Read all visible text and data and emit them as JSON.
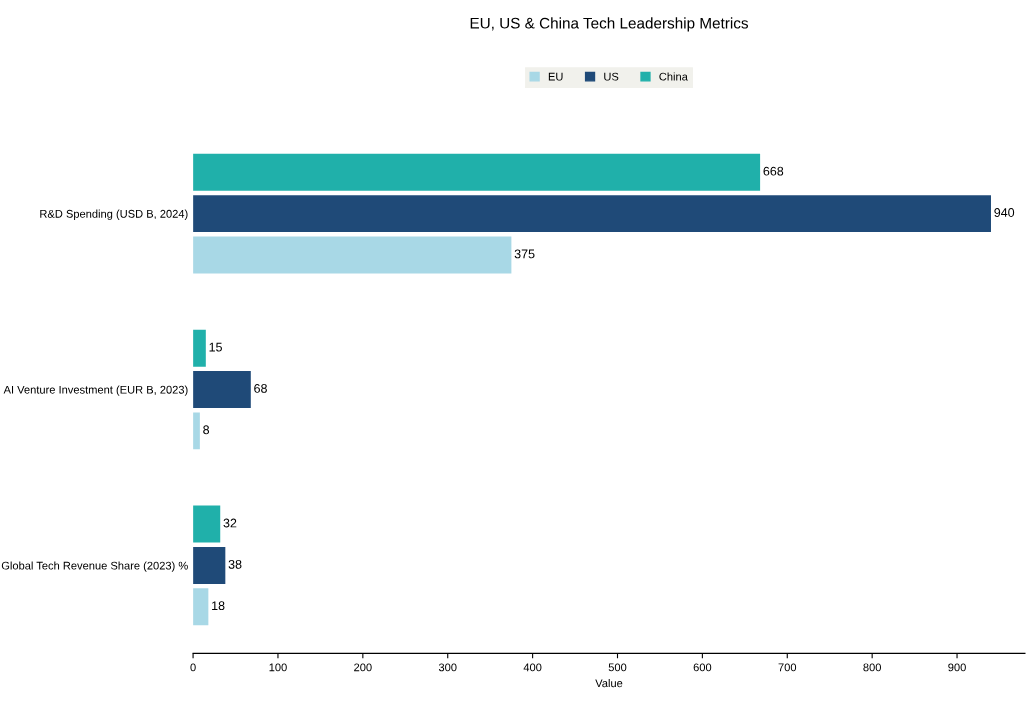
{
  "chart_data": {
    "type": "bar",
    "orientation": "horizontal",
    "title": "EU, US & China Tech Leadership Metrics",
    "xlabel": "Value",
    "categories": [
      "R&D Spending (USD B, 2024)",
      "AI Venture Investment (EUR B, 2023)",
      "Global Tech Revenue Share (2023) %"
    ],
    "series": [
      {
        "name": "EU",
        "color": "#a8d8e6",
        "values": [
          375,
          8,
          18
        ]
      },
      {
        "name": "US",
        "color": "#1f4a78",
        "values": [
          940,
          68,
          38
        ]
      },
      {
        "name": "China",
        "color": "#20b0aa",
        "values": [
          668,
          15,
          32
        ]
      }
    ],
    "xlim": [
      0,
      980
    ],
    "xticks": [
      0,
      100,
      200,
      300,
      400,
      500,
      600,
      700,
      800,
      900
    ],
    "data_labels": true,
    "legend": "top",
    "grid": false
  }
}
